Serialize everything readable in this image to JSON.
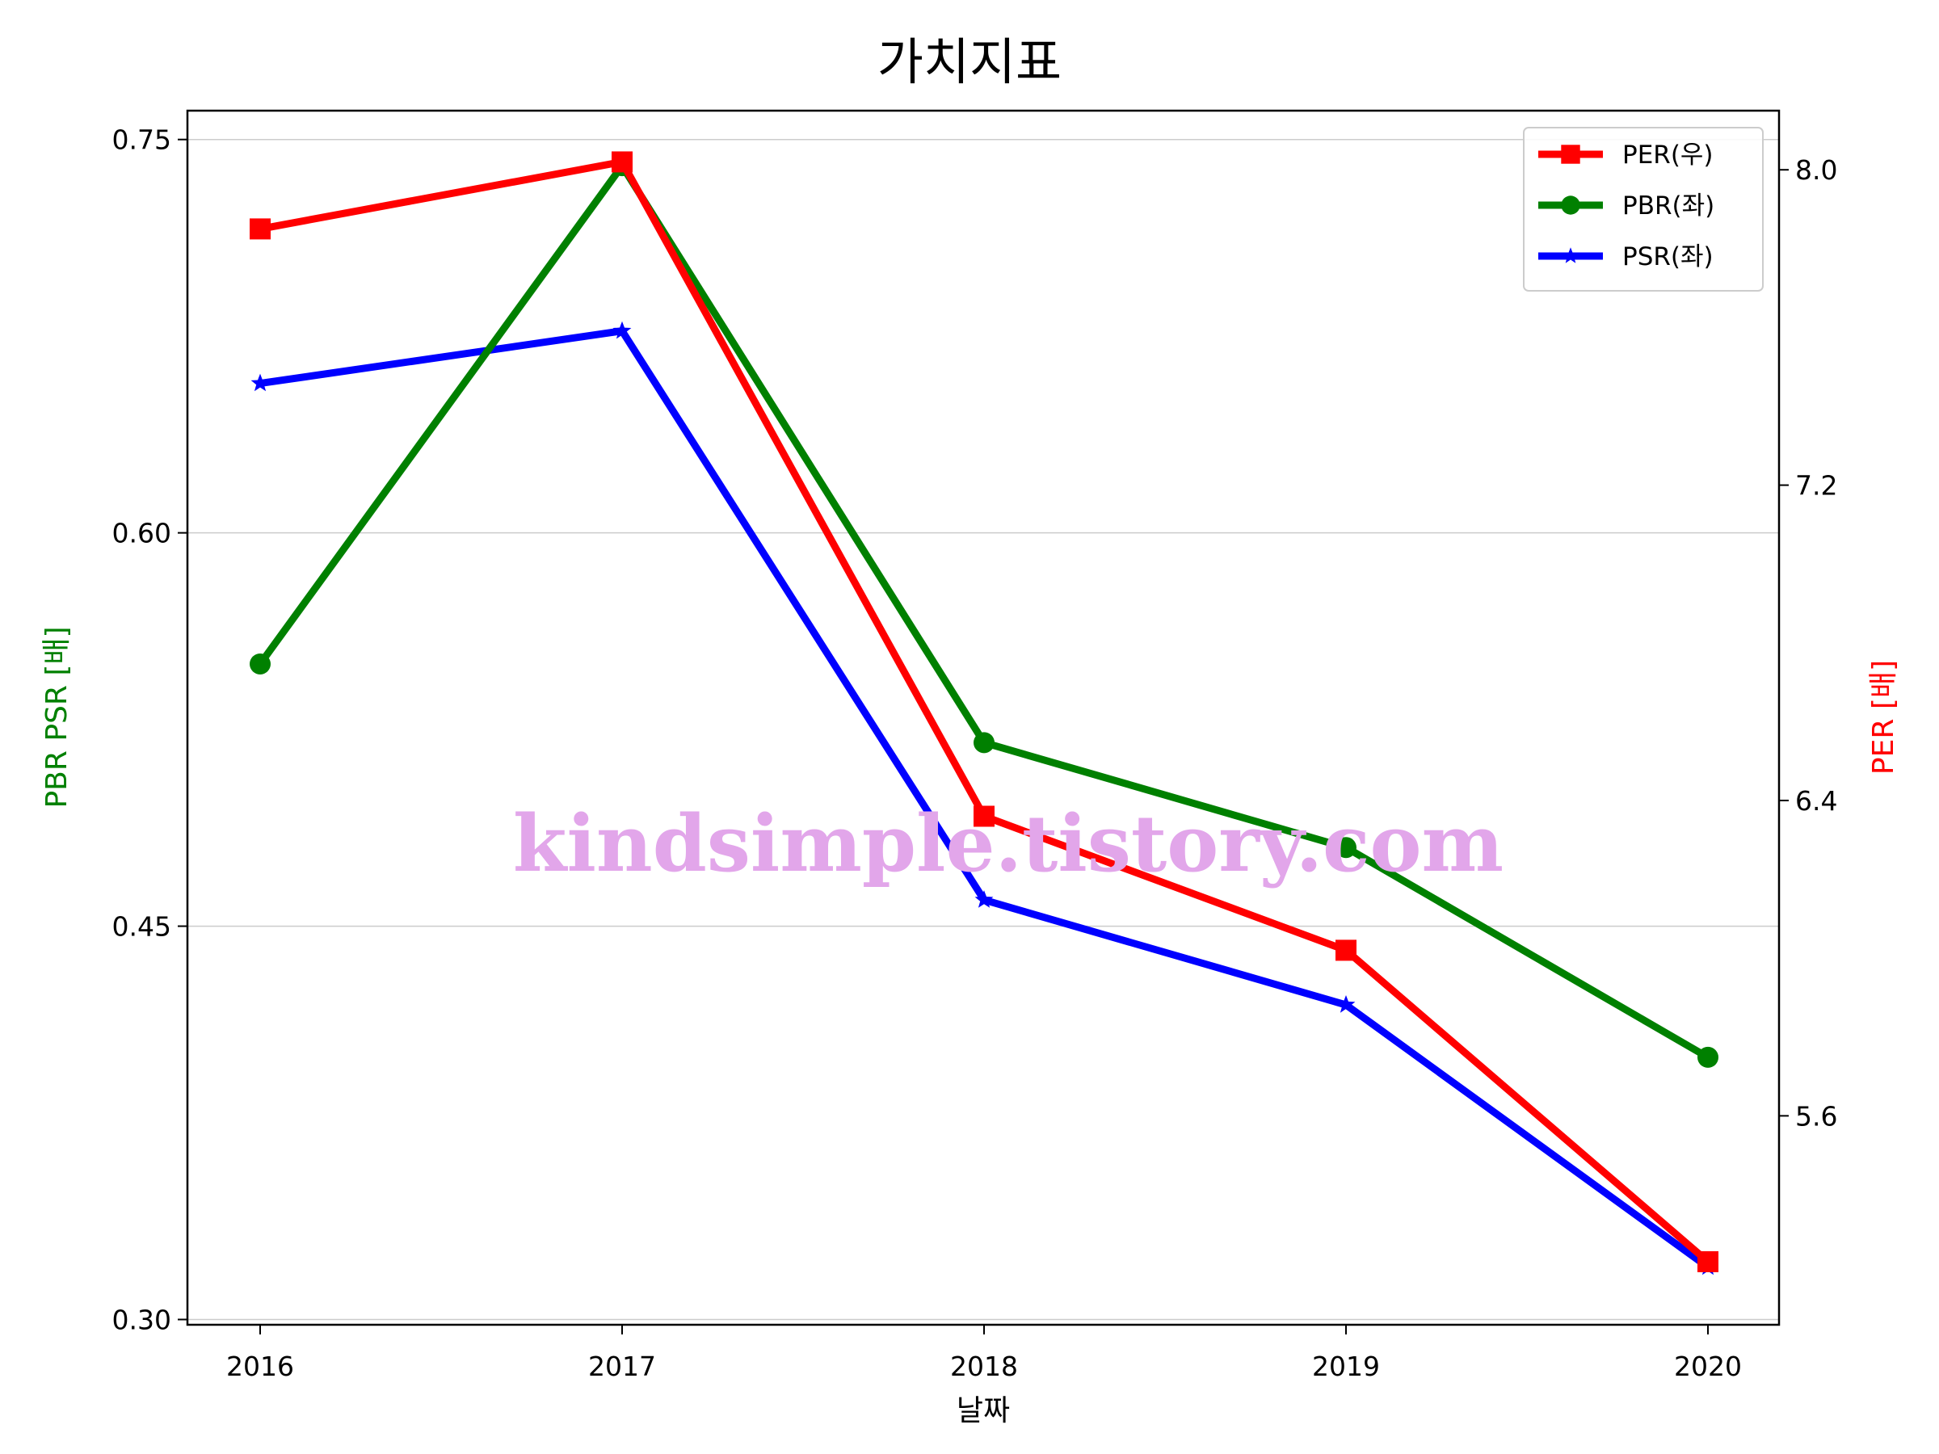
{
  "chart_data": {
    "type": "line",
    "title": "가치지표",
    "xlabel": "날짜",
    "ylabel_left": "PBR PSR [배]",
    "ylabel_right": "PER [배]",
    "categories": [
      "2016",
      "2017",
      "2018",
      "2019",
      "2020"
    ],
    "left_axis": {
      "ylim": [
        0.298,
        0.761
      ],
      "ticks": [
        0.3,
        0.45,
        0.6,
        0.75
      ],
      "tick_labels": [
        "0.30",
        "0.45",
        "0.60",
        "0.75"
      ],
      "grid": true
    },
    "right_axis": {
      "ylim": [
        5.07,
        8.15
      ],
      "ticks": [
        5.6,
        6.4,
        7.2,
        8.0
      ],
      "tick_labels": [
        "5.6",
        "6.4",
        "7.2",
        "8.0"
      ]
    },
    "series": [
      {
        "name": "PER(우)",
        "axis": "right",
        "color": "#ff0000",
        "marker": "square",
        "values": [
          7.85,
          8.02,
          6.36,
          6.02,
          5.23
        ]
      },
      {
        "name": "PBR(좌)",
        "axis": "left",
        "color": "#008000",
        "marker": "circle",
        "values": [
          0.55,
          0.74,
          0.52,
          0.48,
          0.4
        ]
      },
      {
        "name": "PSR(좌)",
        "axis": "left",
        "color": "#0000ff",
        "marker": "star",
        "values": [
          0.657,
          0.677,
          0.46,
          0.42,
          0.32
        ]
      }
    ],
    "legend": {
      "placement": "top-right",
      "order": [
        "PER(우)",
        "PBR(좌)",
        "PSR(좌)"
      ]
    }
  },
  "watermark": "kindsimple.tistory.com"
}
